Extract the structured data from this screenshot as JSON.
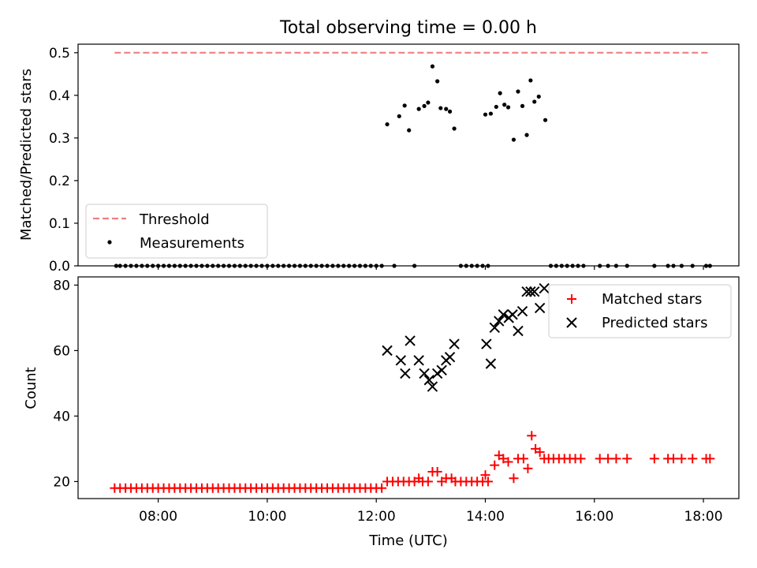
{
  "chart_data": [
    {
      "type": "scatter",
      "title": "Total observing time = 0.00 h",
      "xlabel": "",
      "ylabel": "Matched/Predicted stars",
      "ylim": [
        0,
        0.52
      ],
      "yticks": [
        "0.0",
        "0.1",
        "0.2",
        "0.3",
        "0.4",
        "0.5"
      ],
      "xlim_hours": [
        6.53,
        18.65
      ],
      "legend_position": "lower-left",
      "threshold": {
        "name": "Threshold",
        "value": 0.5,
        "x_range_hours": [
          7.2,
          18.08
        ],
        "color": "#f08080"
      },
      "series": [
        {
          "name": "Measurements",
          "color": "#000000",
          "points": [
            [
              7.23,
              0
            ],
            [
              7.3,
              0
            ],
            [
              7.4,
              0
            ],
            [
              7.5,
              0
            ],
            [
              7.6,
              0
            ],
            [
              7.7,
              0
            ],
            [
              7.8,
              0
            ],
            [
              7.9,
              0
            ],
            [
              8.0,
              0
            ],
            [
              8.1,
              0
            ],
            [
              8.2,
              0
            ],
            [
              8.3,
              0
            ],
            [
              8.4,
              0
            ],
            [
              8.5,
              0
            ],
            [
              8.6,
              0
            ],
            [
              8.7,
              0
            ],
            [
              8.8,
              0
            ],
            [
              8.9,
              0
            ],
            [
              9.0,
              0
            ],
            [
              9.1,
              0
            ],
            [
              9.2,
              0
            ],
            [
              9.3,
              0
            ],
            [
              9.4,
              0
            ],
            [
              9.5,
              0
            ],
            [
              9.6,
              0
            ],
            [
              9.7,
              0
            ],
            [
              9.8,
              0
            ],
            [
              9.9,
              0
            ],
            [
              10.0,
              0
            ],
            [
              10.1,
              0
            ],
            [
              10.2,
              0
            ],
            [
              10.3,
              0
            ],
            [
              10.4,
              0
            ],
            [
              10.5,
              0
            ],
            [
              10.6,
              0
            ],
            [
              10.7,
              0
            ],
            [
              10.8,
              0
            ],
            [
              10.9,
              0
            ],
            [
              11.0,
              0
            ],
            [
              11.1,
              0
            ],
            [
              11.2,
              0
            ],
            [
              11.3,
              0
            ],
            [
              11.4,
              0
            ],
            [
              11.5,
              0
            ],
            [
              11.6,
              0
            ],
            [
              11.7,
              0
            ],
            [
              11.8,
              0
            ],
            [
              11.9,
              0
            ],
            [
              12.0,
              0
            ],
            [
              12.1,
              0
            ],
            [
              12.33,
              0
            ],
            [
              12.7,
              0
            ],
            [
              13.55,
              0
            ],
            [
              13.65,
              0
            ],
            [
              13.75,
              0
            ],
            [
              13.85,
              0
            ],
            [
              13.95,
              0
            ],
            [
              14.05,
              0
            ],
            [
              15.2,
              0
            ],
            [
              15.3,
              0
            ],
            [
              15.4,
              0
            ],
            [
              15.5,
              0
            ],
            [
              15.6,
              0
            ],
            [
              15.7,
              0
            ],
            [
              15.8,
              0
            ],
            [
              16.1,
              0
            ],
            [
              16.25,
              0
            ],
            [
              16.4,
              0
            ],
            [
              16.6,
              0
            ],
            [
              17.1,
              0
            ],
            [
              17.35,
              0
            ],
            [
              17.45,
              0
            ],
            [
              17.6,
              0
            ],
            [
              17.8,
              0
            ],
            [
              18.05,
              0
            ],
            [
              18.12,
              0
            ],
            [
              12.2,
              0.332
            ],
            [
              12.42,
              0.351
            ],
            [
              12.52,
              0.376
            ],
            [
              12.6,
              0.318
            ],
            [
              12.78,
              0.368
            ],
            [
              12.88,
              0.375
            ],
            [
              12.95,
              0.383
            ],
            [
              13.03,
              0.468
            ],
            [
              13.12,
              0.433
            ],
            [
              13.18,
              0.37
            ],
            [
              13.28,
              0.368
            ],
            [
              13.35,
              0.362
            ],
            [
              13.43,
              0.322
            ],
            [
              14.0,
              0.355
            ],
            [
              14.1,
              0.357
            ],
            [
              14.2,
              0.373
            ],
            [
              14.27,
              0.405
            ],
            [
              14.35,
              0.378
            ],
            [
              14.42,
              0.372
            ],
            [
              14.52,
              0.296
            ],
            [
              14.6,
              0.409
            ],
            [
              14.68,
              0.375
            ],
            [
              14.76,
              0.307
            ],
            [
              14.83,
              0.435
            ],
            [
              14.9,
              0.385
            ],
            [
              14.98,
              0.397
            ],
            [
              15.1,
              0.342
            ]
          ]
        }
      ]
    },
    {
      "type": "scatter",
      "title": "",
      "xlabel": "Time (UTC)",
      "ylabel": "Count",
      "ylim": [
        14.8,
        82.5
      ],
      "yticks": [
        "20",
        "40",
        "60",
        "80"
      ],
      "xticks": [
        "08:00",
        "10:00",
        "12:00",
        "14:00",
        "16:00",
        "18:00"
      ],
      "xlim_hours": [
        6.53,
        18.65
      ],
      "legend_position": "upper-right",
      "series": [
        {
          "name": "Matched stars",
          "marker": "plus",
          "color": "#ff0000",
          "points": [
            [
              7.2,
              18
            ],
            [
              7.3,
              18
            ],
            [
              7.4,
              18
            ],
            [
              7.5,
              18
            ],
            [
              7.6,
              18
            ],
            [
              7.7,
              18
            ],
            [
              7.8,
              18
            ],
            [
              7.9,
              18
            ],
            [
              8.0,
              18
            ],
            [
              8.1,
              18
            ],
            [
              8.2,
              18
            ],
            [
              8.3,
              18
            ],
            [
              8.4,
              18
            ],
            [
              8.5,
              18
            ],
            [
              8.6,
              18
            ],
            [
              8.7,
              18
            ],
            [
              8.8,
              18
            ],
            [
              8.9,
              18
            ],
            [
              9.0,
              18
            ],
            [
              9.1,
              18
            ],
            [
              9.2,
              18
            ],
            [
              9.3,
              18
            ],
            [
              9.4,
              18
            ],
            [
              9.5,
              18
            ],
            [
              9.6,
              18
            ],
            [
              9.7,
              18
            ],
            [
              9.8,
              18
            ],
            [
              9.9,
              18
            ],
            [
              10.0,
              18
            ],
            [
              10.1,
              18
            ],
            [
              10.2,
              18
            ],
            [
              10.3,
              18
            ],
            [
              10.4,
              18
            ],
            [
              10.5,
              18
            ],
            [
              10.6,
              18
            ],
            [
              10.7,
              18
            ],
            [
              10.8,
              18
            ],
            [
              10.9,
              18
            ],
            [
              11.0,
              18
            ],
            [
              11.1,
              18
            ],
            [
              11.2,
              18
            ],
            [
              11.3,
              18
            ],
            [
              11.4,
              18
            ],
            [
              11.5,
              18
            ],
            [
              11.6,
              18
            ],
            [
              11.7,
              18
            ],
            [
              11.8,
              18
            ],
            [
              11.9,
              18
            ],
            [
              12.0,
              18
            ],
            [
              12.1,
              18
            ],
            [
              12.2,
              20
            ],
            [
              12.3,
              20
            ],
            [
              12.4,
              20
            ],
            [
              12.5,
              20
            ],
            [
              12.6,
              20
            ],
            [
              12.7,
              20
            ],
            [
              12.78,
              21
            ],
            [
              12.85,
              20
            ],
            [
              12.95,
              20
            ],
            [
              13.03,
              23
            ],
            [
              13.12,
              23
            ],
            [
              13.2,
              20
            ],
            [
              13.28,
              21
            ],
            [
              13.38,
              21
            ],
            [
              13.45,
              20
            ],
            [
              13.55,
              20
            ],
            [
              13.65,
              20
            ],
            [
              13.75,
              20
            ],
            [
              13.85,
              20
            ],
            [
              13.95,
              20
            ],
            [
              14.0,
              22
            ],
            [
              14.05,
              20
            ],
            [
              14.17,
              25
            ],
            [
              14.25,
              28
            ],
            [
              14.33,
              27
            ],
            [
              14.42,
              26
            ],
            [
              14.52,
              21
            ],
            [
              14.6,
              27
            ],
            [
              14.7,
              27
            ],
            [
              14.78,
              24
            ],
            [
              14.85,
              34
            ],
            [
              14.92,
              30
            ],
            [
              15.0,
              29
            ],
            [
              15.08,
              27
            ],
            [
              15.16,
              27
            ],
            [
              15.25,
              27
            ],
            [
              15.35,
              27
            ],
            [
              15.45,
              27
            ],
            [
              15.55,
              27
            ],
            [
              15.65,
              27
            ],
            [
              15.75,
              27
            ],
            [
              16.1,
              27
            ],
            [
              16.25,
              27
            ],
            [
              16.4,
              27
            ],
            [
              16.6,
              27
            ],
            [
              17.1,
              27
            ],
            [
              17.35,
              27
            ],
            [
              17.45,
              27
            ],
            [
              17.6,
              27
            ],
            [
              17.8,
              27
            ],
            [
              18.05,
              27
            ],
            [
              18.12,
              27
            ]
          ]
        },
        {
          "name": "Predicted stars",
          "marker": "x",
          "color": "#000000",
          "points": [
            [
              12.2,
              60
            ],
            [
              12.45,
              57
            ],
            [
              12.53,
              53
            ],
            [
              12.62,
              63
            ],
            [
              12.78,
              57
            ],
            [
              12.88,
              53
            ],
            [
              12.97,
              51
            ],
            [
              13.03,
              49
            ],
            [
              13.12,
              53
            ],
            [
              13.2,
              54
            ],
            [
              13.28,
              57
            ],
            [
              13.35,
              58
            ],
            [
              13.43,
              62
            ],
            [
              14.02,
              62
            ],
            [
              14.1,
              56
            ],
            [
              14.17,
              67
            ],
            [
              14.25,
              69
            ],
            [
              14.33,
              71
            ],
            [
              14.43,
              70
            ],
            [
              14.5,
              71
            ],
            [
              14.6,
              66
            ],
            [
              14.68,
              72
            ],
            [
              14.76,
              78
            ],
            [
              14.83,
              78
            ],
            [
              14.9,
              78
            ],
            [
              15.0,
              73
            ],
            [
              15.08,
              79
            ]
          ]
        }
      ]
    }
  ]
}
